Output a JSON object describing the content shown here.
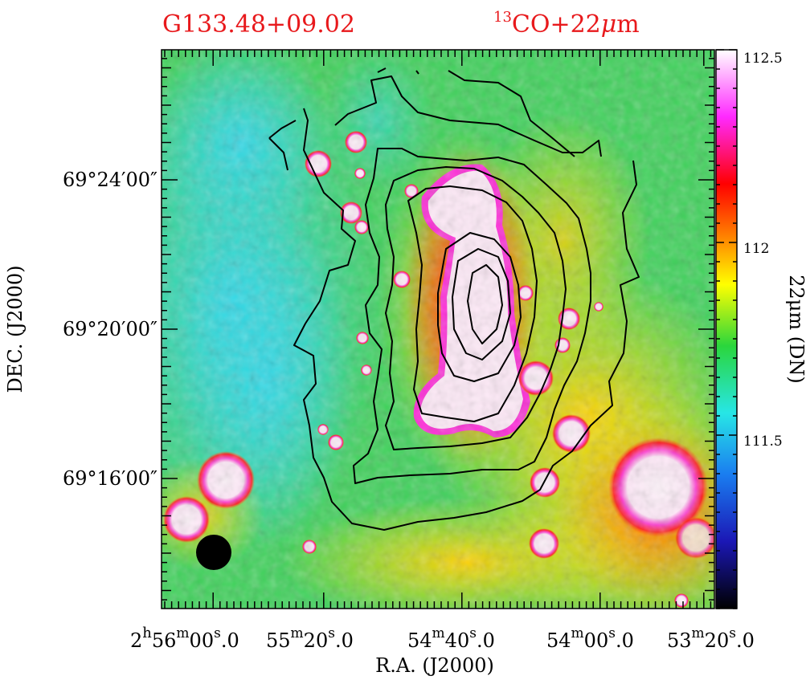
{
  "titles": {
    "source_name": "G133.48+09.02",
    "line_sup": "13",
    "line_main": "CO+22",
    "line_unit": "m"
  },
  "chart_data": {
    "type": "heatmap",
    "xlabel": "R.A.  (J2000)",
    "ylabel": "DEC.  (J2000)",
    "colorbar_label": "22μm (DN)",
    "colorbar_range": [
      111.05,
      112.5
    ],
    "colorbar_ticks": [
      {
        "value": 111.5,
        "label": "111.5"
      },
      {
        "value": 112.0,
        "label": "112"
      },
      {
        "value": 112.5,
        "label": "112.5"
      }
    ],
    "x_ticks": [
      {
        "h": "2",
        "m": "56",
        "s": "00",
        "f": "0"
      },
      {
        "h": "",
        "m": "55",
        "s": "20",
        "f": "0"
      },
      {
        "h": "",
        "m": "54",
        "s": "40",
        "f": "0"
      },
      {
        "h": "",
        "m": "54",
        "s": "00",
        "f": "0"
      },
      {
        "h": "",
        "m": "53",
        "s": "20",
        "f": "0"
      }
    ],
    "y_ticks": [
      {
        "label": "69°24′00″",
        "dec_min": 24
      },
      {
        "label": "69°20′00″",
        "dec_min": 20
      },
      {
        "label": "69°16′00″",
        "dec_min": 16
      }
    ],
    "contour_levels": 8,
    "beam": "filled circle, lower-left",
    "colormap": [
      "#000000",
      "#1b17b5",
      "#1a7df0",
      "#27e6e6",
      "#2ad63c",
      "#ffff00",
      "#ff8a00",
      "#ff0000",
      "#ff29ff",
      "#ffffff"
    ]
  }
}
